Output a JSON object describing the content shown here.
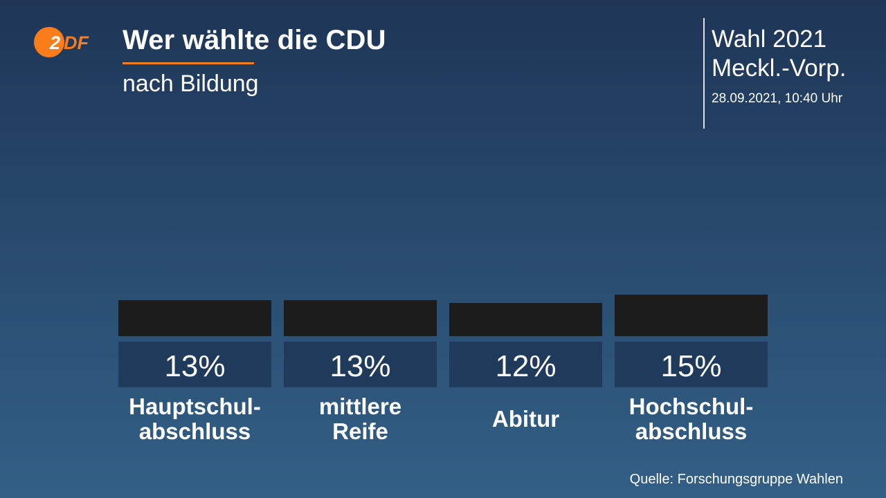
{
  "logo": {
    "text": "ZDF",
    "color": "#fa7d19"
  },
  "header": {
    "title": "Wer wählte die CDU",
    "subtitle": "nach Bildung",
    "election_line1": "Wahl 2021",
    "election_line2": "Meckl.-Vorp.",
    "timestamp": "28.09.2021, 10:40 Uhr"
  },
  "footer": {
    "source": "Quelle: Forschungsgruppe Wahlen"
  },
  "colors": {
    "accent": "#fa7d19",
    "bar": "#1c1c1c",
    "value_box": "#1f3a5a",
    "text": "#ffffff"
  },
  "chart_data": {
    "type": "bar",
    "title": "Wer wählte die CDU",
    "subtitle": "nach Bildung",
    "categories": [
      [
        "Hauptschul-",
        "abschluss"
      ],
      [
        "mittlere",
        "Reife"
      ],
      [
        "Abitur"
      ],
      [
        "Hochschul-",
        "abschluss"
      ]
    ],
    "values": [
      13,
      13,
      12,
      15
    ],
    "value_labels": [
      "13%",
      "13%",
      "12%",
      "15%"
    ],
    "unit": "%",
    "series": [
      {
        "values": [
          13,
          13,
          12,
          15
        ],
        "color": "#1c1c1c"
      }
    ],
    "grid": false
  }
}
